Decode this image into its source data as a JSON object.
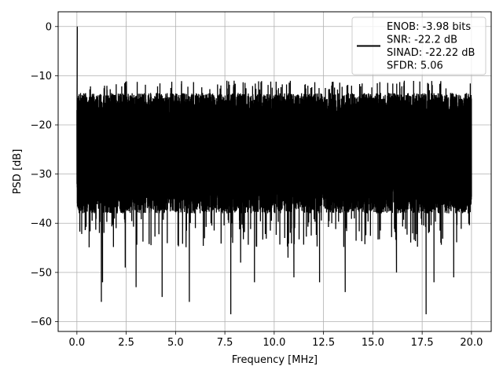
{
  "chart_data": {
    "type": "line",
    "title": "",
    "xlabel": "Frequency [MHz]",
    "ylabel": "PSD [dB]",
    "xlim": [
      -0.95,
      21.0
    ],
    "ylim": [
      -62,
      3
    ],
    "xticks": [
      0.0,
      2.5,
      5.0,
      7.5,
      10.0,
      12.5,
      15.0,
      17.5,
      20.0
    ],
    "xtick_labels": [
      "0.0",
      "2.5",
      "5.0",
      "7.5",
      "10.0",
      "12.5",
      "15.0",
      "17.5",
      "20.0"
    ],
    "yticks": [
      0,
      -10,
      -20,
      -30,
      -40,
      -50,
      -60
    ],
    "ytick_labels": [
      "0",
      "−10",
      "−20",
      "−30",
      "−40",
      "−50",
      "−60"
    ],
    "grid": true,
    "legend_position": "top-right",
    "series": [
      {
        "color": "#000000",
        "x_range": [
          0.0,
          20.0
        ],
        "peak": {
          "x": 0.02,
          "y": 0.0
        },
        "band": {
          "upper_typical": -17,
          "upper_max": -12,
          "lower_typical": -35,
          "lower_min": -58.5,
          "median": -25
        },
        "dips": [
          {
            "x": 1.24,
            "y": -56.0
          },
          {
            "x": 1.3,
            "y": -52.0
          },
          {
            "x": 2.45,
            "y": -49.0
          },
          {
            "x": 3.0,
            "y": -47.0
          },
          {
            "x": 3.0,
            "y": -53.0
          },
          {
            "x": 4.32,
            "y": -55.0
          },
          {
            "x": 5.7,
            "y": -56.0
          },
          {
            "x": 7.8,
            "y": -58.5
          },
          {
            "x": 9.0,
            "y": -52.0
          },
          {
            "x": 11.0,
            "y": -51.0
          },
          {
            "x": 12.3,
            "y": -52.0
          },
          {
            "x": 13.6,
            "y": -54.0
          },
          {
            "x": 17.7,
            "y": -58.5
          },
          {
            "x": 18.1,
            "y": -52.0
          },
          {
            "x": 19.1,
            "y": -51.0
          },
          {
            "x": 16.2,
            "y": -50.0
          },
          {
            "x": 8.3,
            "y": -48.0
          },
          {
            "x": 10.7,
            "y": -47.0
          }
        ]
      }
    ],
    "legend_lines": [
      "ENOB: -3.98 bits",
      "SNR: -22.2 dB",
      "SINAD: -22.22 dB",
      "SFDR: 5.06"
    ]
  }
}
